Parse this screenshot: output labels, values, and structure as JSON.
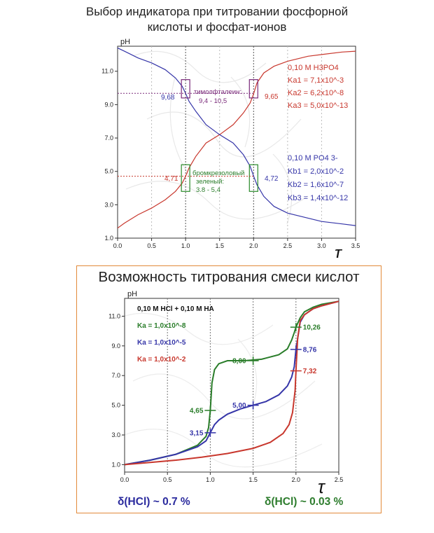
{
  "top_title": {
    "line1": "Выбор индикатора при титровании фосфорной",
    "line2": "кислоты и фосфат-ионов"
  },
  "bottom_title": "Возможность титрования смеси кислот",
  "notes": {
    "left": "δ(HCl) ~ 0.7 %",
    "right": "δ(HCl) ~ 0.03 %"
  },
  "colors": {
    "red": "#c8372d",
    "blue": "#3535a8",
    "green": "#2a7d2a",
    "purple": "#7a2a7a",
    "grid": "#555555",
    "accent_border": "#e28a3a"
  },
  "chart_data": [
    {
      "type": "line",
      "ylabel": "pH",
      "xlabel": "τ",
      "xlim": [
        0,
        3.5
      ],
      "ylim": [
        1.0,
        12.5
      ],
      "xticks": [
        "0.0",
        "0.5",
        "1.0",
        "1.5",
        "2.0",
        "2.5",
        "3.0",
        "3.5"
      ],
      "yticks": [
        "1.0",
        "3.0",
        "5.0",
        "7.0",
        "9.0",
        "11.0"
      ],
      "grid": "dotted vertical lines at 1.0 and 2.0",
      "series": [
        {
          "name": "0,10 M H3PO4",
          "color": "red",
          "x": [
            0,
            0.1,
            0.3,
            0.5,
            0.7,
            0.85,
            0.95,
            1.0,
            1.05,
            1.15,
            1.3,
            1.5,
            1.7,
            1.85,
            1.95,
            2.0,
            2.05,
            2.15,
            2.3,
            2.5,
            2.8,
            3.0,
            3.3,
            3.5
          ],
          "y": [
            1.6,
            1.9,
            2.4,
            2.8,
            3.3,
            3.8,
            4.3,
            4.7,
            5.2,
            5.9,
            6.7,
            7.2,
            7.8,
            8.5,
            9.1,
            9.65,
            10.3,
            10.9,
            11.3,
            11.6,
            11.9,
            12.0,
            12.15,
            12.2
          ]
        },
        {
          "name": "0,10 M PO4 3-",
          "color": "blue",
          "x": [
            0,
            0.1,
            0.3,
            0.5,
            0.7,
            0.85,
            0.95,
            1.0,
            1.05,
            1.15,
            1.3,
            1.5,
            1.7,
            1.85,
            1.95,
            2.0,
            2.05,
            2.15,
            2.3,
            2.5,
            2.8,
            3.0,
            3.3,
            3.5
          ],
          "y": [
            12.4,
            12.2,
            11.8,
            11.5,
            11.1,
            10.6,
            10.1,
            9.68,
            9.2,
            8.6,
            7.8,
            7.2,
            6.7,
            6.0,
            5.3,
            4.72,
            4.2,
            3.5,
            2.9,
            2.5,
            2.2,
            2.0,
            1.85,
            1.75
          ]
        }
      ],
      "legend_top": {
        "line1": "0,10 M H3PO4",
        "ka1": "Ka1 = 7,1x10^-3",
        "ka2": "Ka2 = 6,2x10^-8",
        "ka3": "Ka3 = 5,0x10^-13"
      },
      "legend_bottom": {
        "line1": "0,10 M PO4 3-",
        "kb1": "Kb1 = 2,0x10^-2",
        "kb2": "Kb2 = 1,6x10^-7",
        "kb3": "Kb3 = 1,4x10^-12"
      },
      "annotations": {
        "thymol_label": "тимолфталеин:",
        "thymol_range": "9,4 - 10,5",
        "bromo_label": "бромкрезоловый",
        "bromo_label2": "зеленый:",
        "bromo_range": "3.8 - 5,4",
        "pt_968": "9,68",
        "pt_965": "9,65",
        "pt_471": "4,71",
        "pt_472": "4,72"
      }
    },
    {
      "type": "line",
      "ylabel": "pH",
      "xlabel": "τ",
      "xlim": [
        0,
        2.5
      ],
      "ylim": [
        0.5,
        12.2
      ],
      "xticks": [
        "0.0",
        "0.5",
        "1.0",
        "1.5",
        "2.0",
        "2.5"
      ],
      "yticks": [
        "1.0",
        "3.0",
        "5.0",
        "7.0",
        "9.0",
        "11.0"
      ],
      "grid": "dotted vertical lines at 0.5, 1.0, 1.5, 2.0",
      "legend_title": "0,10 M HCl + 0,10 M HA",
      "series": [
        {
          "name": "Ka = 1,0x10^-8",
          "color": "green",
          "x": [
            0,
            0.3,
            0.6,
            0.85,
            0.95,
            0.98,
            1.0,
            1.02,
            1.05,
            1.1,
            1.2,
            1.4,
            1.6,
            1.8,
            1.9,
            1.95,
            1.98,
            2.0,
            2.05,
            2.1,
            2.2,
            2.3,
            2.5
          ],
          "y": [
            1.0,
            1.3,
            1.7,
            2.3,
            2.9,
            3.5,
            4.65,
            6.5,
            7.4,
            7.8,
            8.0,
            8.0,
            8.1,
            8.4,
            8.8,
            9.4,
            9.9,
            10.26,
            10.9,
            11.3,
            11.6,
            11.8,
            12.0
          ]
        },
        {
          "name": "Ka = 1,0x10^-5",
          "color": "blue",
          "x": [
            0,
            0.3,
            0.6,
            0.85,
            0.95,
            1.0,
            1.05,
            1.1,
            1.2,
            1.35,
            1.5,
            1.65,
            1.8,
            1.9,
            1.95,
            1.98,
            2.0,
            2.05,
            2.1,
            2.2,
            2.3,
            2.5
          ],
          "y": [
            1.0,
            1.3,
            1.7,
            2.2,
            2.6,
            3.15,
            3.7,
            4.0,
            4.4,
            4.75,
            5.0,
            5.25,
            5.7,
            6.3,
            6.9,
            7.6,
            8.76,
            10.6,
            11.1,
            11.5,
            11.7,
            12.0
          ]
        },
        {
          "name": "Ka = 1,0x10^-2",
          "color": "red",
          "x": [
            0,
            0.3,
            0.6,
            0.9,
            1.2,
            1.5,
            1.7,
            1.85,
            1.92,
            1.96,
            1.99,
            2.0,
            2.02,
            2.05,
            2.1,
            2.2,
            2.3,
            2.5
          ],
          "y": [
            1.0,
            1.15,
            1.3,
            1.5,
            1.75,
            2.1,
            2.5,
            3.1,
            3.7,
            4.5,
            6.0,
            7.32,
            9.5,
            10.7,
            11.1,
            11.5,
            11.7,
            12.0
          ]
        }
      ],
      "point_labels": {
        "g1": "4,65",
        "g2": "8,00",
        "g3": "10,26",
        "b1": "3,15",
        "b2": "5,00",
        "b3": "8,76",
        "r1": "7,32"
      }
    }
  ]
}
